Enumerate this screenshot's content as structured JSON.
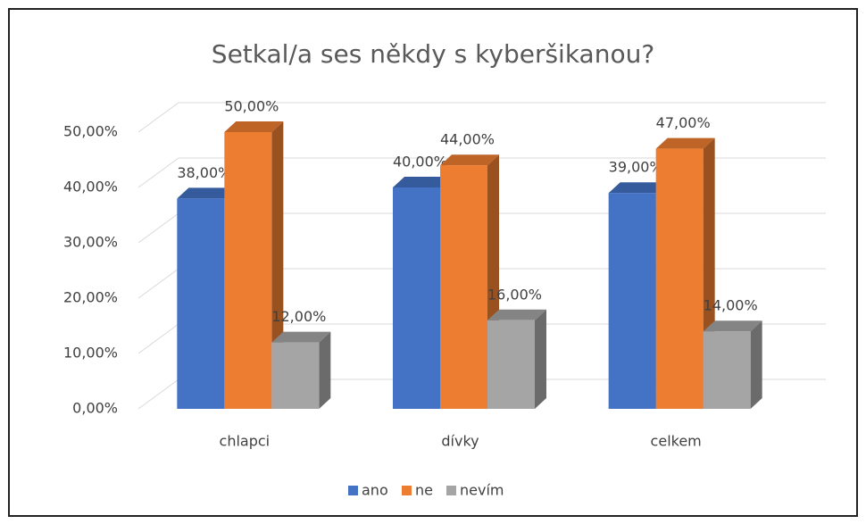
{
  "chart_data": {
    "type": "bar3d",
    "title": "Setkal/a ses někdy s kyberšikanou?",
    "categories": [
      "chlapci",
      "dívky",
      "celkem"
    ],
    "series": [
      {
        "name": "ano",
        "color": "#4472c4",
        "values": [
          38,
          40,
          39
        ],
        "value_labels": [
          "38,00%",
          "40,00%",
          "39,00%"
        ]
      },
      {
        "name": "ne",
        "color": "#ed7d31",
        "values": [
          50,
          44,
          47
        ],
        "value_labels": [
          "50,00%",
          "44,00%",
          "47,00%"
        ]
      },
      {
        "name": "nevím",
        "color": "#a5a5a5",
        "values": [
          12,
          16,
          14
        ],
        "value_labels": [
          "12,00%",
          "16,00%",
          "14,00%"
        ]
      }
    ],
    "ylim": [
      0,
      50
    ],
    "yticks": [
      {
        "value": 0,
        "label": "0,00%"
      },
      {
        "value": 10,
        "label": "10,00%"
      },
      {
        "value": 20,
        "label": "20,00%"
      },
      {
        "value": 30,
        "label": "30,00%"
      },
      {
        "value": 40,
        "label": "40,00%"
      },
      {
        "value": 50,
        "label": "50,00%"
      }
    ],
    "grid": true,
    "legend": "bottom"
  }
}
